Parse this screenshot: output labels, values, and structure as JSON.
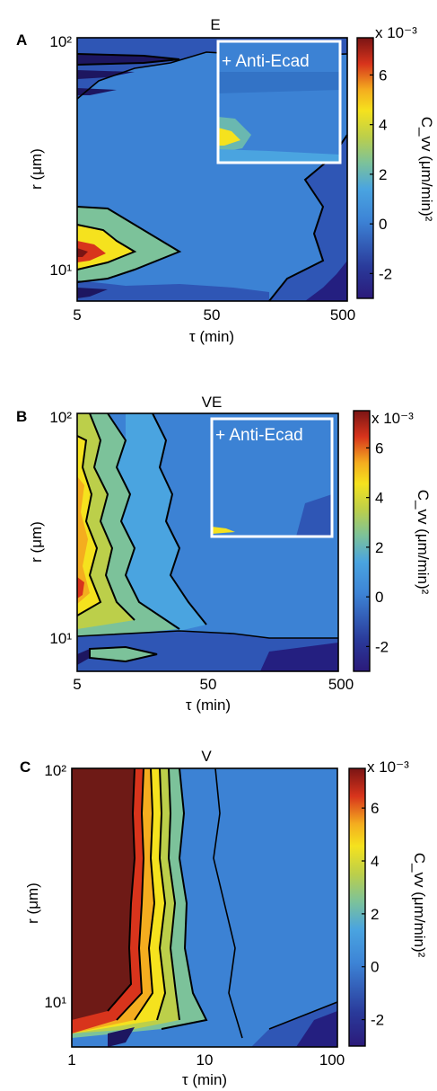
{
  "chart_data": [
    {
      "type": "heatmap",
      "panel_label": "A",
      "title": "E",
      "xlabel": "τ (min)",
      "ylabel": "r (μm)",
      "x_scale": "log",
      "y_scale": "log",
      "xlim": [
        5,
        500
      ],
      "x_ticks": [
        "5",
        "50",
        "500"
      ],
      "y_ticks": [
        "10²",
        "10¹"
      ],
      "colorbar": {
        "label": "C_vv (μm/min)²",
        "exponent": "x 10⁻³",
        "ticks": [
          "6",
          "4",
          "2",
          "0",
          "-2"
        ],
        "tick_values": [
          6,
          4,
          2,
          0,
          -2
        ],
        "range": [
          -3,
          7.5
        ]
      },
      "inset_label": "+ Anti-Ecad",
      "dominant_level": 0.5
    },
    {
      "type": "heatmap",
      "panel_label": "B",
      "title": "VE",
      "xlabel": "τ (min)",
      "ylabel": "r (μm)",
      "x_scale": "log",
      "y_scale": "log",
      "xlim": [
        5,
        500
      ],
      "x_ticks": [
        "5",
        "50",
        "500"
      ],
      "y_ticks": [
        "10²",
        "10¹"
      ],
      "colorbar": {
        "label": "C_vv (μm/min)²",
        "exponent": "x 10⁻³",
        "ticks": [
          "6",
          "4",
          "2",
          "0",
          "-2"
        ],
        "tick_values": [
          6,
          4,
          2,
          0,
          -2
        ],
        "range": [
          -3,
          7.5
        ]
      },
      "inset_label": "+ Anti-Ecad",
      "dominant_level": 0.5
    },
    {
      "type": "heatmap",
      "panel_label": "C",
      "title": "V",
      "xlabel": "τ (min)",
      "ylabel": "r (μm)",
      "x_scale": "log",
      "y_scale": "log",
      "xlim": [
        1,
        100
      ],
      "x_ticks": [
        "1",
        "10",
        "100"
      ],
      "y_ticks": [
        "10²",
        "10¹"
      ],
      "colorbar": {
        "label": "C_vv (μm/min)²",
        "exponent": "x 10⁻³",
        "ticks": [
          "6",
          "4",
          "2",
          "0",
          "-2"
        ],
        "tick_values": [
          6,
          4,
          2,
          0,
          -2
        ],
        "range": [
          -3,
          7.5
        ]
      },
      "dominant_level": 7.5
    }
  ]
}
